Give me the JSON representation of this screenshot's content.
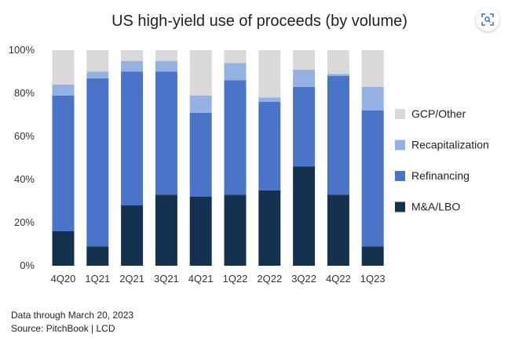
{
  "chart_data": {
    "type": "bar",
    "stacked": true,
    "title": "US high-yield use of proceeds (by volume)",
    "xlabel": "",
    "ylabel": "",
    "ylim": [
      0,
      100
    ],
    "yticks": [
      0,
      20,
      40,
      60,
      80,
      100
    ],
    "ytick_format": "{v}%",
    "grid": false,
    "legend_position": "right",
    "categories": [
      "4Q20",
      "1Q21",
      "2Q21",
      "3Q21",
      "4Q21",
      "1Q22",
      "2Q22",
      "3Q22",
      "4Q22",
      "1Q23"
    ],
    "series": [
      {
        "name": "M&A/LBO",
        "color": "#14324f",
        "values": [
          16,
          9,
          28,
          33,
          32,
          33,
          35,
          46,
          33,
          9
        ]
      },
      {
        "name": "Refinancing",
        "color": "#4a74c7",
        "values": [
          63,
          78,
          62,
          57,
          39,
          53,
          41,
          37,
          55,
          63
        ]
      },
      {
        "name": "Recapitalization",
        "color": "#93b2e3",
        "values": [
          5,
          3,
          5,
          5,
          8,
          8,
          2,
          8,
          1,
          11
        ]
      },
      {
        "name": "GCP/Other",
        "color": "#d9d9d9",
        "values": [
          16,
          10,
          5,
          5,
          21,
          6,
          22,
          9,
          11,
          17
        ]
      }
    ],
    "legend_order": [
      "GCP/Other",
      "Recapitalization",
      "Refinancing",
      "M&A/LBO"
    ]
  },
  "notes": {
    "line1": "Data through March 20, 2023",
    "line2": "Source: PitchBook | LCD"
  },
  "ui": {
    "lens_button_icon": "lens-search-icon"
  }
}
